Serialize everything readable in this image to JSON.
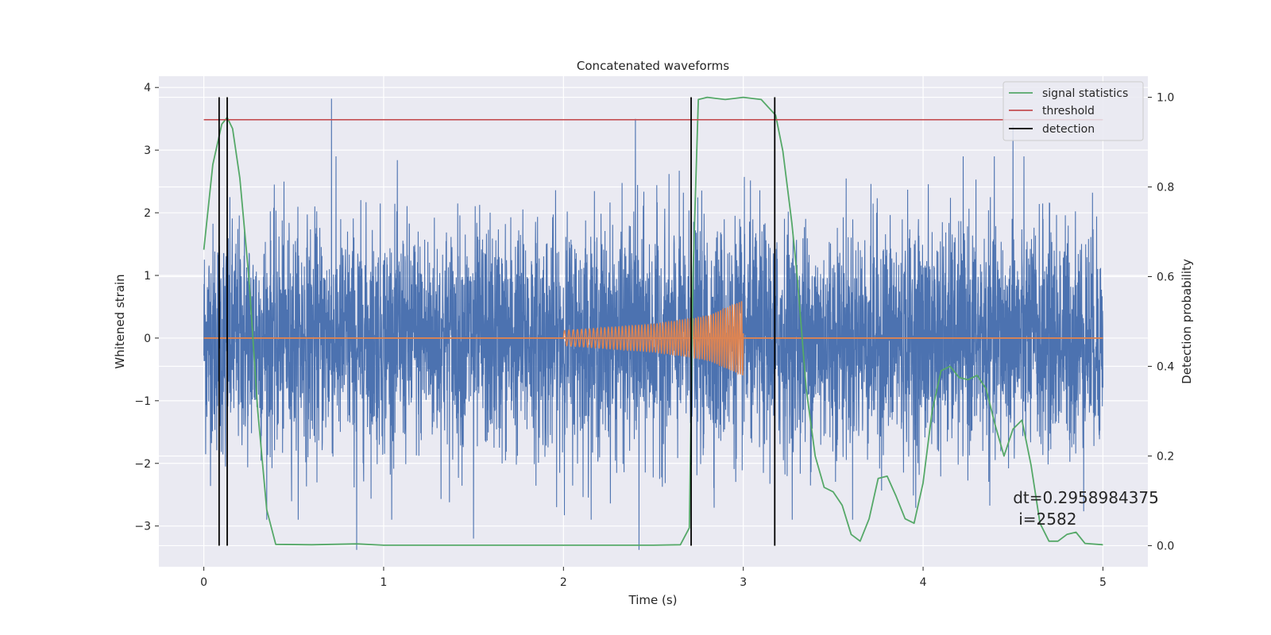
{
  "chart_data": {
    "type": "line",
    "title": "Concatenated waveforms",
    "xlabel": "Time (s)",
    "ylabel": "Whitened strain",
    "ylabel_right": "Detection probability",
    "xlim": [
      -0.25,
      5.25
    ],
    "ylim": [
      -3.65,
      4.18
    ],
    "ylim_right": [
      -0.047,
      1.047
    ],
    "xticks": [
      0,
      1,
      2,
      3,
      4,
      5
    ],
    "xtick_labels": [
      "0",
      "1",
      "2",
      "3",
      "4",
      "5"
    ],
    "yticks": [
      -3,
      -2,
      -1,
      0,
      1,
      2,
      3,
      4
    ],
    "ytick_labels": [
      "−3",
      "−2",
      "−1",
      "0",
      "1",
      "2",
      "3",
      "4"
    ],
    "yticks_right": [
      0.0,
      0.2,
      0.4,
      0.6,
      0.8,
      1.0
    ],
    "ytick_labels_right": [
      "0.0",
      "0.2",
      "0.4",
      "0.6",
      "0.8",
      "1.0"
    ],
    "grid": true,
    "legend_position": "top-right",
    "colors": {
      "background": "#eaeaf2",
      "grid": "#ffffff",
      "strain": "#4c72b0",
      "injection": "#dd8452",
      "signal_statistics": "#55a868",
      "threshold": "#c44e52",
      "detection": "#000000"
    },
    "series": [
      {
        "name": "",
        "role": "whitened strain noise",
        "axis": "left",
        "x_range": [
          0,
          5
        ],
        "typical_amplitude": 1.0,
        "spikes": [
          [
            0.71,
            3.82
          ],
          [
            0.85,
            -3.38
          ],
          [
            1.5,
            -3.2
          ],
          [
            2.42,
            -3.38
          ],
          [
            2.4,
            3.5
          ],
          [
            4.5,
            3.4
          ],
          [
            0.12,
            -2.05
          ]
        ]
      },
      {
        "name": "",
        "role": "injected chirp",
        "axis": "left",
        "x": [
          0,
          2.0,
          2.5,
          2.8,
          3.0,
          3.0,
          5.0
        ],
        "amplitude": [
          0,
          0.12,
          0.22,
          0.35,
          0.6,
          0,
          0
        ]
      },
      {
        "name": "signal statistics",
        "axis": "right",
        "x": [
          0.0,
          0.05,
          0.1,
          0.13,
          0.16,
          0.2,
          0.25,
          0.3,
          0.35,
          0.4,
          0.6,
          0.85,
          1.0,
          1.5,
          2.0,
          2.5,
          2.65,
          2.7,
          2.72,
          2.75,
          2.8,
          2.9,
          3.0,
          3.1,
          3.18,
          3.22,
          3.27,
          3.3,
          3.35,
          3.4,
          3.45,
          3.5,
          3.55,
          3.6,
          3.65,
          3.7,
          3.75,
          3.8,
          3.85,
          3.9,
          3.95,
          4.0,
          4.05,
          4.1,
          4.15,
          4.2,
          4.25,
          4.3,
          4.35,
          4.4,
          4.45,
          4.5,
          4.55,
          4.6,
          4.65,
          4.7,
          4.75,
          4.8,
          4.85,
          4.9,
          5.0
        ],
        "y": [
          0.66,
          0.85,
          0.94,
          0.955,
          0.93,
          0.82,
          0.6,
          0.3,
          0.08,
          0.003,
          0.002,
          0.004,
          0.001,
          0.001,
          0.001,
          0.001,
          0.002,
          0.04,
          0.6,
          0.995,
          1.0,
          0.995,
          1.0,
          0.995,
          0.96,
          0.88,
          0.72,
          0.6,
          0.35,
          0.2,
          0.13,
          0.12,
          0.09,
          0.025,
          0.01,
          0.06,
          0.15,
          0.155,
          0.11,
          0.06,
          0.05,
          0.14,
          0.3,
          0.39,
          0.4,
          0.375,
          0.37,
          0.38,
          0.35,
          0.27,
          0.2,
          0.26,
          0.28,
          0.18,
          0.05,
          0.01,
          0.01,
          0.025,
          0.03,
          0.005,
          0.002
        ]
      },
      {
        "name": "threshold",
        "axis": "right",
        "x": [
          0.0,
          5.0
        ],
        "y": [
          0.95,
          0.95
        ]
      },
      {
        "name": "detection",
        "axis": "right",
        "vertical_lines_x": [
          0.085,
          0.13,
          2.71,
          3.175
        ]
      }
    ],
    "annotation": {
      "line1": "dt=0.2958984375",
      "line2": "i=2582",
      "x": 4.5,
      "y": -2.55
    }
  }
}
